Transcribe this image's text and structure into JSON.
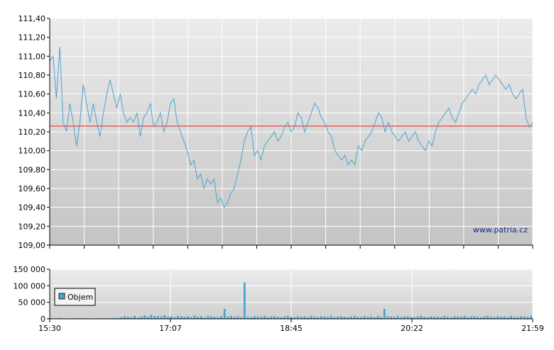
{
  "chart_data": [
    {
      "type": "line",
      "title": "",
      "xlabel": "",
      "ylabel": "",
      "ylim": [
        109.0,
        111.4
      ],
      "y_ticks": [
        "109,00",
        "109,20",
        "109,40",
        "109,60",
        "109,80",
        "110,00",
        "110,20",
        "110,40",
        "110,60",
        "110,80",
        "111,00",
        "111,20",
        "111,40"
      ],
      "y_tick_values": [
        109.0,
        109.2,
        109.4,
        109.6,
        109.8,
        110.0,
        110.2,
        110.4,
        110.6,
        110.8,
        111.0,
        111.2,
        111.4
      ],
      "reference_line": 110.26,
      "grid": true,
      "watermark": "www.patria.cz",
      "colors": {
        "line": "#4aa3d0",
        "reference": "#e02020",
        "grid": "#ffffff"
      },
      "series": [
        {
          "values": [
            110.95,
            111.0,
            110.55,
            111.1,
            110.3,
            110.2,
            110.5,
            110.3,
            110.05,
            110.3,
            110.7,
            110.5,
            110.3,
            110.5,
            110.3,
            110.15,
            110.4,
            110.6,
            110.75,
            110.6,
            110.45,
            110.6,
            110.4,
            110.3,
            110.35,
            110.3,
            110.4,
            110.15,
            110.35,
            110.4,
            110.5,
            110.25,
            110.3,
            110.4,
            110.2,
            110.3,
            110.5,
            110.55,
            110.3,
            110.2,
            110.1,
            110.0,
            109.85,
            109.9,
            109.7,
            109.75,
            109.6,
            109.7,
            109.65,
            109.7,
            109.45,
            109.5,
            109.4,
            109.45,
            109.55,
            109.6,
            109.75,
            109.9,
            110.1,
            110.2,
            110.25,
            109.95,
            110.0,
            109.9,
            110.05,
            110.1,
            110.15,
            110.2,
            110.1,
            110.15,
            110.25,
            110.3,
            110.2,
            110.25,
            110.4,
            110.35,
            110.2,
            110.3,
            110.4,
            110.5,
            110.45,
            110.35,
            110.3,
            110.2,
            110.15,
            110.0,
            109.95,
            109.9,
            109.95,
            109.85,
            109.9,
            109.85,
            110.05,
            110.0,
            110.1,
            110.15,
            110.2,
            110.3,
            110.4,
            110.35,
            110.2,
            110.3,
            110.2,
            110.15,
            110.1,
            110.15,
            110.2,
            110.1,
            110.15,
            110.2,
            110.1,
            110.05,
            110.0,
            110.1,
            110.05,
            110.2,
            110.3,
            110.35,
            110.4,
            110.45,
            110.35,
            110.3,
            110.4,
            110.5,
            110.55,
            110.6,
            110.65,
            110.6,
            110.7,
            110.75,
            110.8,
            110.7,
            110.75,
            110.8,
            110.75,
            110.7,
            110.65,
            110.7,
            110.6,
            110.55,
            110.6,
            110.65,
            110.35,
            110.25,
            110.3
          ],
          "volume": [
            2000,
            500,
            1500,
            3000,
            800,
            1200,
            1000,
            2500,
            900,
            1800,
            1400,
            1100,
            700,
            900,
            1600,
            1300,
            1000,
            1200,
            1500,
            3000,
            2500,
            5000,
            8000,
            6000,
            5000,
            9000,
            4000,
            7000,
            10000,
            6000,
            12000,
            8000,
            9000,
            7000,
            11000,
            6000,
            8000,
            5000,
            9000,
            7000,
            6000,
            8000,
            5000,
            10000,
            6000,
            8000,
            4000,
            9000,
            7000,
            6000,
            5000,
            8000,
            30000,
            7000,
            9000,
            6000,
            8000,
            5000,
            110000,
            6000,
            5000,
            8000,
            7000,
            6000,
            9000,
            5000,
            7000,
            8000,
            6000,
            5000,
            7000,
            9000,
            6000,
            5000,
            8000,
            6000,
            7000,
            5000,
            9000,
            6000,
            5000,
            8000,
            7000,
            6000,
            9000,
            5000,
            7000,
            8000,
            6000,
            5000,
            7000,
            9000,
            6000,
            5000,
            8000,
            6000,
            7000,
            5000,
            9000,
            6000,
            30000,
            8000,
            7000,
            6000,
            9000,
            5000,
            7000,
            8000,
            6000,
            5000,
            7000,
            9000,
            6000,
            5000,
            8000,
            6000,
            7000,
            5000,
            9000,
            6000,
            5000,
            8000,
            7000,
            6000,
            9000,
            5000,
            7000,
            8000,
            6000,
            5000,
            7000,
            9000,
            6000,
            5000,
            8000,
            6000,
            7000,
            5000,
            9000,
            6000,
            5000,
            8000,
            7000,
            6000,
            9000
          ]
        }
      ]
    },
    {
      "type": "bar",
      "title": "",
      "xlabel": "",
      "ylabel": "",
      "ylim": [
        0,
        150000
      ],
      "y_ticks": [
        "0",
        "50 000",
        "100 000",
        "150 000"
      ],
      "y_tick_values": [
        0,
        50000,
        100000,
        150000
      ],
      "x_ticks": [
        "15:30",
        "17:07",
        "18:45",
        "20:22",
        "21:59"
      ],
      "legend": "top-left",
      "legend_label": "Objem",
      "colors": {
        "bar": "#4aa3d0"
      }
    }
  ]
}
